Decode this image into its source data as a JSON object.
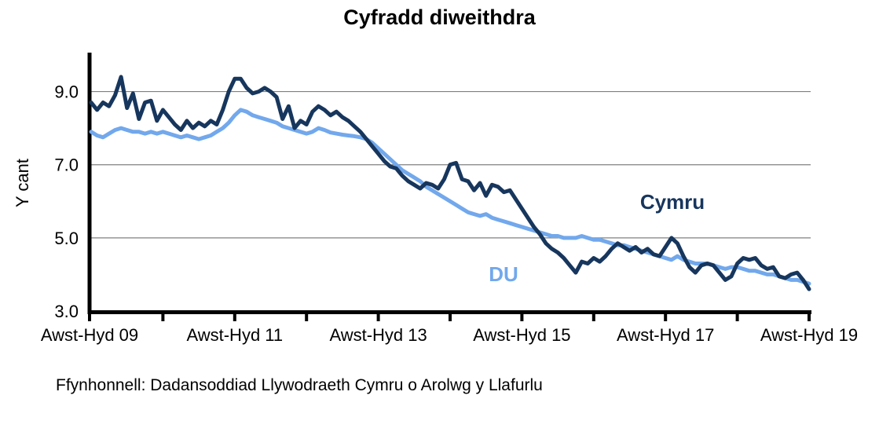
{
  "source": "Ffynhonnell: Dadansoddiad Llywodraeth Cymru o Arolwg y Llafurlu",
  "chart_data": {
    "type": "line",
    "title": "Cyfradd diweithdra",
    "ylabel": "Y cant",
    "xlabel": "",
    "ylim": [
      3,
      10
    ],
    "grid": "horizontal",
    "gridline_values": [
      9,
      7,
      5
    ],
    "y_ticks": [
      {
        "value": 9,
        "label": "9.0"
      },
      {
        "value": 7,
        "label": "7.0"
      },
      {
        "value": 5,
        "label": "5.0"
      },
      {
        "value": 3,
        "label": "3.0"
      }
    ],
    "x_tick_labels": [
      {
        "pos": 0,
        "label": "Awst-Hyd 09"
      },
      {
        "pos": 2,
        "label": "Awst-Hyd 11"
      },
      {
        "pos": 4,
        "label": "Awst-Hyd 13"
      },
      {
        "pos": 6,
        "label": "Awst-Hyd 15"
      },
      {
        "pos": 8,
        "label": "Awst-Hyd 17"
      },
      {
        "pos": 10,
        "label": "Awst-Hyd 19"
      }
    ],
    "minor_tick_years": [
      0,
      1,
      2,
      3,
      4,
      5,
      6,
      7,
      8,
      9,
      10
    ],
    "x_range_years": [
      0,
      10
    ],
    "frequency": "monthly rolling 3-month periods, Awst-Hyd 2009 to Awst-Hyd 2019",
    "legend_position": "inline-labels",
    "series": [
      {
        "name": "Cymru",
        "color": "#17365D",
        "values": [
          8.7,
          8.5,
          8.7,
          8.6,
          8.9,
          9.4,
          8.55,
          8.95,
          8.25,
          8.7,
          8.75,
          8.2,
          8.5,
          8.3,
          8.1,
          7.95,
          8.2,
          8.0,
          8.15,
          8.05,
          8.2,
          8.1,
          8.5,
          9.0,
          9.35,
          9.35,
          9.1,
          8.95,
          9.0,
          9.1,
          9.0,
          8.85,
          8.25,
          8.6,
          8.0,
          8.2,
          8.1,
          8.45,
          8.6,
          8.5,
          8.35,
          8.45,
          8.3,
          8.2,
          8.05,
          7.9,
          7.7,
          7.5,
          7.3,
          7.1,
          6.95,
          6.9,
          6.7,
          6.55,
          6.45,
          6.35,
          6.5,
          6.45,
          6.35,
          6.6,
          7.0,
          7.05,
          6.6,
          6.55,
          6.3,
          6.5,
          6.15,
          6.45,
          6.4,
          6.25,
          6.3,
          6.05,
          5.8,
          5.55,
          5.3,
          5.1,
          4.85,
          4.7,
          4.6,
          4.45,
          4.25,
          4.05,
          4.35,
          4.3,
          4.45,
          4.35,
          4.5,
          4.7,
          4.85,
          4.75,
          4.65,
          4.75,
          4.6,
          4.7,
          4.55,
          4.5,
          4.75,
          5.0,
          4.85,
          4.5,
          4.2,
          4.05,
          4.25,
          4.3,
          4.25,
          4.05,
          3.85,
          3.95,
          4.3,
          4.45,
          4.4,
          4.45,
          4.25,
          4.15,
          4.2,
          3.95,
          3.9,
          4.0,
          4.05,
          3.85,
          3.6
        ]
      },
      {
        "name": "DU",
        "color": "#72A8EC",
        "values": [
          7.9,
          7.8,
          7.75,
          7.85,
          7.95,
          8.0,
          7.95,
          7.9,
          7.9,
          7.85,
          7.9,
          7.85,
          7.9,
          7.85,
          7.8,
          7.75,
          7.8,
          7.75,
          7.7,
          7.75,
          7.8,
          7.9,
          8.0,
          8.15,
          8.35,
          8.5,
          8.45,
          8.35,
          8.3,
          8.25,
          8.2,
          8.15,
          8.05,
          8.0,
          7.95,
          7.9,
          7.85,
          7.9,
          8.0,
          7.95,
          7.88,
          7.85,
          7.82,
          7.8,
          7.78,
          7.75,
          7.7,
          7.6,
          7.45,
          7.3,
          7.15,
          7.0,
          6.85,
          6.75,
          6.65,
          6.55,
          6.4,
          6.3,
          6.2,
          6.1,
          6.0,
          5.9,
          5.8,
          5.7,
          5.65,
          5.6,
          5.65,
          5.55,
          5.5,
          5.45,
          5.4,
          5.35,
          5.3,
          5.25,
          5.2,
          5.15,
          5.1,
          5.05,
          5.05,
          5.0,
          5.0,
          5.0,
          5.05,
          5.0,
          4.95,
          4.95,
          4.9,
          4.85,
          4.8,
          4.8,
          4.75,
          4.7,
          4.65,
          4.6,
          4.55,
          4.5,
          4.45,
          4.4,
          4.5,
          4.4,
          4.35,
          4.3,
          4.3,
          4.3,
          4.25,
          4.2,
          4.15,
          4.2,
          4.2,
          4.15,
          4.1,
          4.1,
          4.05,
          4.0,
          4.0,
          3.95,
          3.9,
          3.85,
          3.85,
          3.8,
          3.75
        ]
      }
    ],
    "colors": {
      "axis": "#000000",
      "gridline": "#808080",
      "text": "#000000"
    }
  }
}
